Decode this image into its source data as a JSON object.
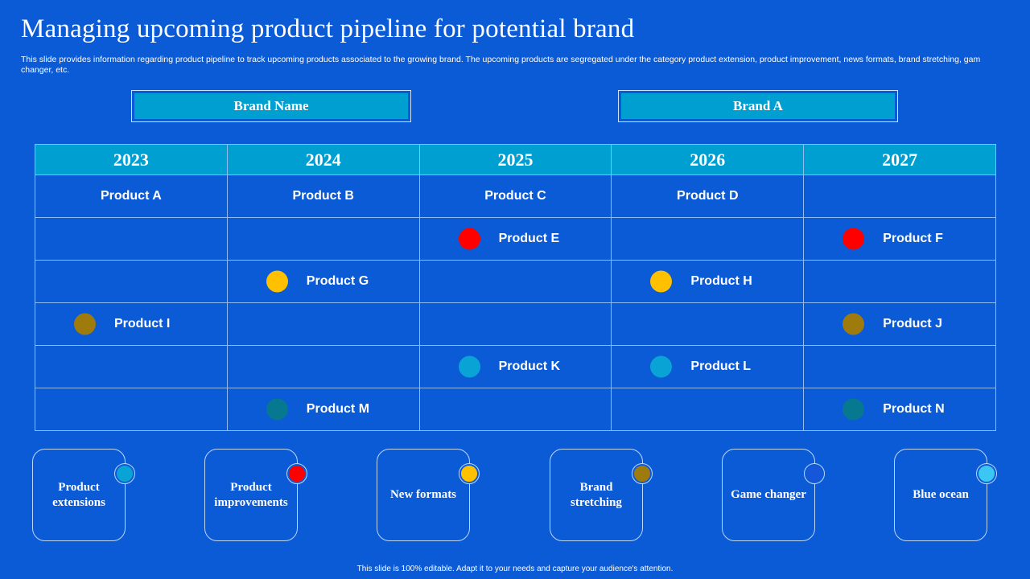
{
  "slide": {
    "title": "Managing upcoming product pipeline for potential brand",
    "description": "This slide provides information regarding product pipeline to track upcoming products associated to the growing brand. The upcoming products are segregated under the category product extension, product improvement, news formats, brand stretching, gam changer, etc.",
    "brand_name_label": "Brand Name",
    "brand_value": "Brand A",
    "footer": "This slide is 100% editable.  Adapt it to your needs and capture your audience's attention."
  },
  "pipeline": {
    "years": [
      "2023",
      "2024",
      "2025",
      "2026",
      "2027"
    ],
    "rows": [
      [
        {
          "label": "Product A"
        },
        {
          "label": "Product B"
        },
        {
          "label": "Product C"
        },
        {
          "label": "Product D"
        },
        null
      ],
      [
        null,
        null,
        {
          "label": "Product E",
          "category": "improvements"
        },
        null,
        {
          "label": "Product F",
          "category": "improvements"
        }
      ],
      [
        null,
        {
          "label": "Product G",
          "category": "new_formats"
        },
        null,
        {
          "label": "Product H",
          "category": "new_formats"
        },
        null
      ],
      [
        {
          "label": "Product I",
          "category": "brand_stretching"
        },
        null,
        null,
        null,
        {
          "label": "Product J",
          "category": "brand_stretching"
        }
      ],
      [
        null,
        null,
        {
          "label": "Product K",
          "category": "extensions"
        },
        {
          "label": "Product L",
          "category": "extensions"
        },
        null
      ],
      [
        null,
        {
          "label": "Product M",
          "category": "teal"
        },
        null,
        null,
        {
          "label": "Product N",
          "category": "teal"
        }
      ]
    ]
  },
  "colors": {
    "extensions": "#0aa3d6",
    "improvements": "#ff0000",
    "new_formats": "#ffc000",
    "brand_stretching": "#9e7b0c",
    "game_changer": "#1656d8",
    "blue_ocean": "#3cc6f4",
    "teal": "#06788f"
  },
  "legend": [
    {
      "label": "Product extensions",
      "color_key": "extensions"
    },
    {
      "label": "Product improvements",
      "color_key": "improvements"
    },
    {
      "label": "New formats",
      "color_key": "new_formats"
    },
    {
      "label": "Brand stretching",
      "color_key": "brand_stretching"
    },
    {
      "label": "Game changer",
      "color_key": "game_changer"
    },
    {
      "label": "Blue ocean",
      "color_key": "blue_ocean"
    }
  ]
}
